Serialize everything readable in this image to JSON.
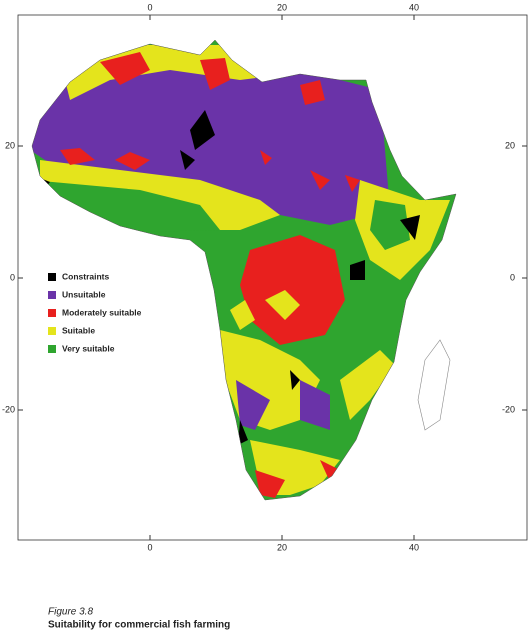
{
  "map": {
    "xticks": [
      0,
      20,
      40
    ],
    "yticks": [
      20,
      0,
      -20
    ],
    "legend": [
      {
        "label": "Constraints",
        "color": "#000000"
      },
      {
        "label": "Unsuitable",
        "color": "#6a33a8"
      },
      {
        "label": "Moderately suitable",
        "color": "#e8201e"
      },
      {
        "label": "Suitable",
        "color": "#e4e41c"
      },
      {
        "label": "Very suitable",
        "color": "#2fa52f"
      }
    ],
    "caption": {
      "figure": "Figure 3.8",
      "title": "Suitability for commercial fish farming"
    }
  }
}
